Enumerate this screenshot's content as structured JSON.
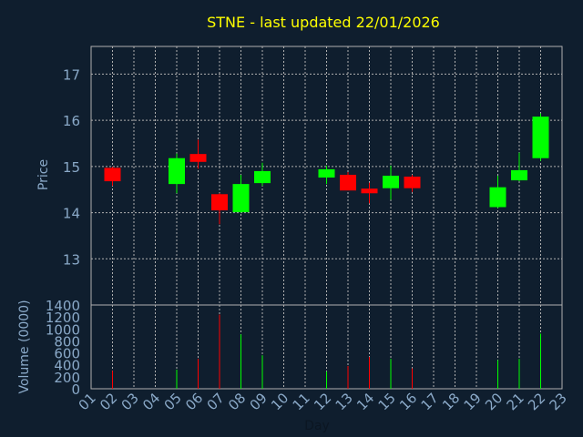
{
  "chart_data": [
    {
      "type": "candlestick",
      "title": "STNE - last updated 22/01/2026",
      "ylabel": "Price",
      "ylim": [
        12,
        17.6
      ],
      "yticks": [
        "13",
        "14",
        "15",
        "16",
        "17"
      ],
      "x": [
        "02",
        "05",
        "06",
        "07",
        "08",
        "09",
        "12",
        "13",
        "14",
        "15",
        "16",
        "20",
        "21",
        "22"
      ],
      "ohlc": [
        {
          "open": 14.97,
          "high": 14.99,
          "low": 14.58,
          "close": 14.68
        },
        {
          "open": 14.62,
          "high": 15.28,
          "low": 14.42,
          "close": 15.18
        },
        {
          "open": 15.27,
          "high": 15.58,
          "low": 14.95,
          "close": 15.1
        },
        {
          "open": 14.4,
          "high": 14.42,
          "low": 13.75,
          "close": 14.05
        },
        {
          "open": 14.01,
          "high": 14.82,
          "low": 14.0,
          "close": 14.62
        },
        {
          "open": 14.64,
          "high": 15.08,
          "low": 14.58,
          "close": 14.9
        },
        {
          "open": 14.76,
          "high": 15.02,
          "low": 14.62,
          "close": 14.94
        },
        {
          "open": 14.82,
          "high": 14.88,
          "low": 14.5,
          "close": 14.48
        },
        {
          "open": 14.52,
          "high": 14.65,
          "low": 14.2,
          "close": 14.42
        },
        {
          "open": 14.53,
          "high": 15.02,
          "low": 14.28,
          "close": 14.8
        },
        {
          "open": 14.78,
          "high": 14.82,
          "low": 14.45,
          "close": 14.53
        },
        {
          "open": 14.12,
          "high": 14.8,
          "low": 14.1,
          "close": 14.55
        },
        {
          "open": 14.7,
          "high": 15.3,
          "low": 14.68,
          "close": 14.92
        },
        {
          "open": 15.18,
          "high": 16.15,
          "low": 15.12,
          "close": 16.08
        }
      ],
      "colors": {
        "up": "#00ff00",
        "down": "#ff0000"
      }
    },
    {
      "type": "bar",
      "ylabel": "Volume (0000)",
      "xlabel": "Day",
      "ylim": [
        0,
        1400
      ],
      "yticks": [
        "0",
        "200",
        "400",
        "600",
        "800",
        "1000",
        "1200",
        "1400"
      ],
      "categories": [
        "01",
        "02",
        "03",
        "04",
        "05",
        "06",
        "07",
        "08",
        "09",
        "10",
        "11",
        "12",
        "13",
        "14",
        "15",
        "16",
        "17",
        "18",
        "19",
        "20",
        "21",
        "22",
        "23"
      ],
      "x": [
        "02",
        "05",
        "06",
        "07",
        "08",
        "09",
        "12",
        "13",
        "14",
        "15",
        "16",
        "20",
        "21",
        "22"
      ],
      "values": [
        300,
        320,
        500,
        1240,
        910,
        560,
        290,
        380,
        530,
        500,
        340,
        480,
        500,
        920
      ]
    }
  ],
  "colors": {
    "background": "#0f1e2e",
    "grid": "#b0b0b0",
    "axis_text": "#8aa9c8",
    "title": "#ffff00"
  }
}
